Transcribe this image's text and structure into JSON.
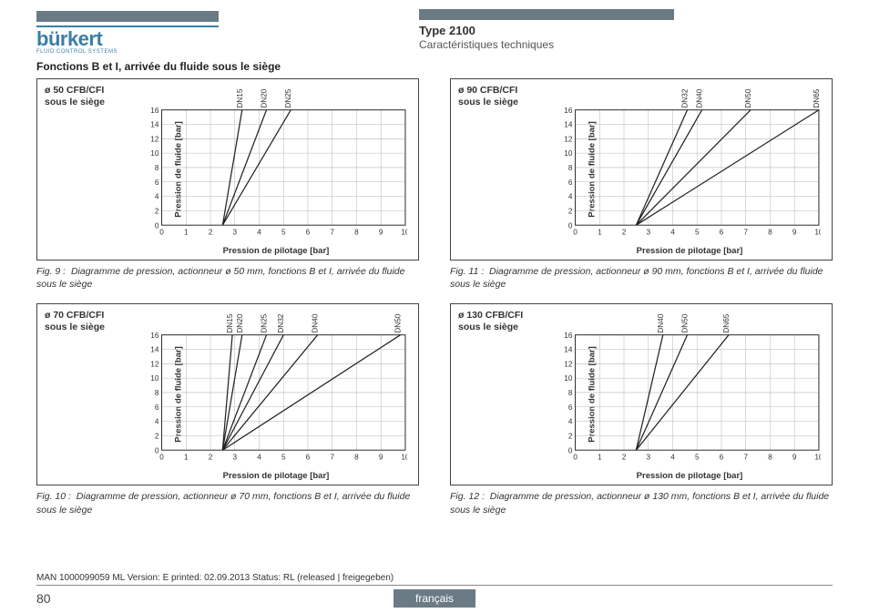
{
  "header": {
    "logo": "bürkert",
    "logo_sub": "FLUID CONTROL SYSTEMS",
    "type_title": "Type 2100",
    "subtitle": "Caractéristiques techniques"
  },
  "section_title": "Fonctions B et I, arrivée du fluide sous le siège",
  "common": {
    "ylabel": "Pression de fluide [bar]",
    "xlabel": "Pression de pilotage [bar]",
    "xlim": [
      0,
      10
    ],
    "ylim": [
      0,
      16
    ],
    "xtick_step": 1,
    "yticks": [
      0,
      2,
      4,
      6,
      8,
      10,
      12,
      14,
      16
    ],
    "grid_color": "#b8b8b8",
    "line_color": "#222222",
    "background_color": "#ffffff"
  },
  "charts": [
    {
      "title1": "ø 50 CFB/CFI",
      "title2": "sous le siège",
      "lines": [
        {
          "name": "DN15",
          "x0": 2.5,
          "x1": 3.3
        },
        {
          "name": "DN20",
          "x0": 2.5,
          "x1": 4.3
        },
        {
          "name": "DN25",
          "x0": 2.5,
          "x1": 5.3
        }
      ],
      "caption_num": "Fig. 9 :",
      "caption": "Diagramme de pression, actionneur ø 50 mm, fonctions B et I, arrivée du fluide sous le siège"
    },
    {
      "title1": "ø 90 CFB/CFI",
      "title2": "sous le siège",
      "lines": [
        {
          "name": "DN32",
          "x0": 2.5,
          "x1": 4.6
        },
        {
          "name": "DN40",
          "x0": 2.5,
          "x1": 5.2
        },
        {
          "name": "DN50",
          "x0": 2.5,
          "x1": 7.2
        },
        {
          "name": "DN65",
          "x0": 2.5,
          "x1": 10.0
        }
      ],
      "caption_num": "Fig. 11 :",
      "caption": "Diagramme de pression, actionneur ø 90 mm, fonctions B et I, arrivée du fluide sous le siège"
    },
    {
      "title1": "ø 70 CFB/CFI",
      "title2": "sous le siège",
      "lines": [
        {
          "name": "DN15",
          "x0": 2.5,
          "x1": 2.9
        },
        {
          "name": "DN20",
          "x0": 2.5,
          "x1": 3.3
        },
        {
          "name": "DN25",
          "x0": 2.5,
          "x1": 4.3
        },
        {
          "name": "DN32",
          "x0": 2.5,
          "x1": 5.0
        },
        {
          "name": "DN40",
          "x0": 2.5,
          "x1": 6.4
        },
        {
          "name": "DN50",
          "x0": 2.5,
          "x1": 9.8
        }
      ],
      "caption_num": "Fig. 10 :",
      "caption": "Diagramme de pression, actionneur ø 70 mm, fonctions B et I, arrivée du fluide sous le siège"
    },
    {
      "title1": "ø 130 CFB/CFI",
      "title2": "sous le siège",
      "lines": [
        {
          "name": "DN40",
          "x0": 2.5,
          "x1": 3.6
        },
        {
          "name": "DN50",
          "x0": 2.5,
          "x1": 4.6
        },
        {
          "name": "DN65",
          "x0": 2.5,
          "x1": 6.3
        }
      ],
      "caption_num": "Fig. 12 :",
      "caption": "Diagramme de pression, actionneur ø 130 mm, fonctions B et I, arrivée du fluide sous le siège"
    }
  ],
  "footer": {
    "doc_line": "MAN  1000099059  ML  Version: E  printed: 02.09.2013 Status: RL (released | freigegeben)",
    "page_num": "80",
    "lang": "français"
  }
}
